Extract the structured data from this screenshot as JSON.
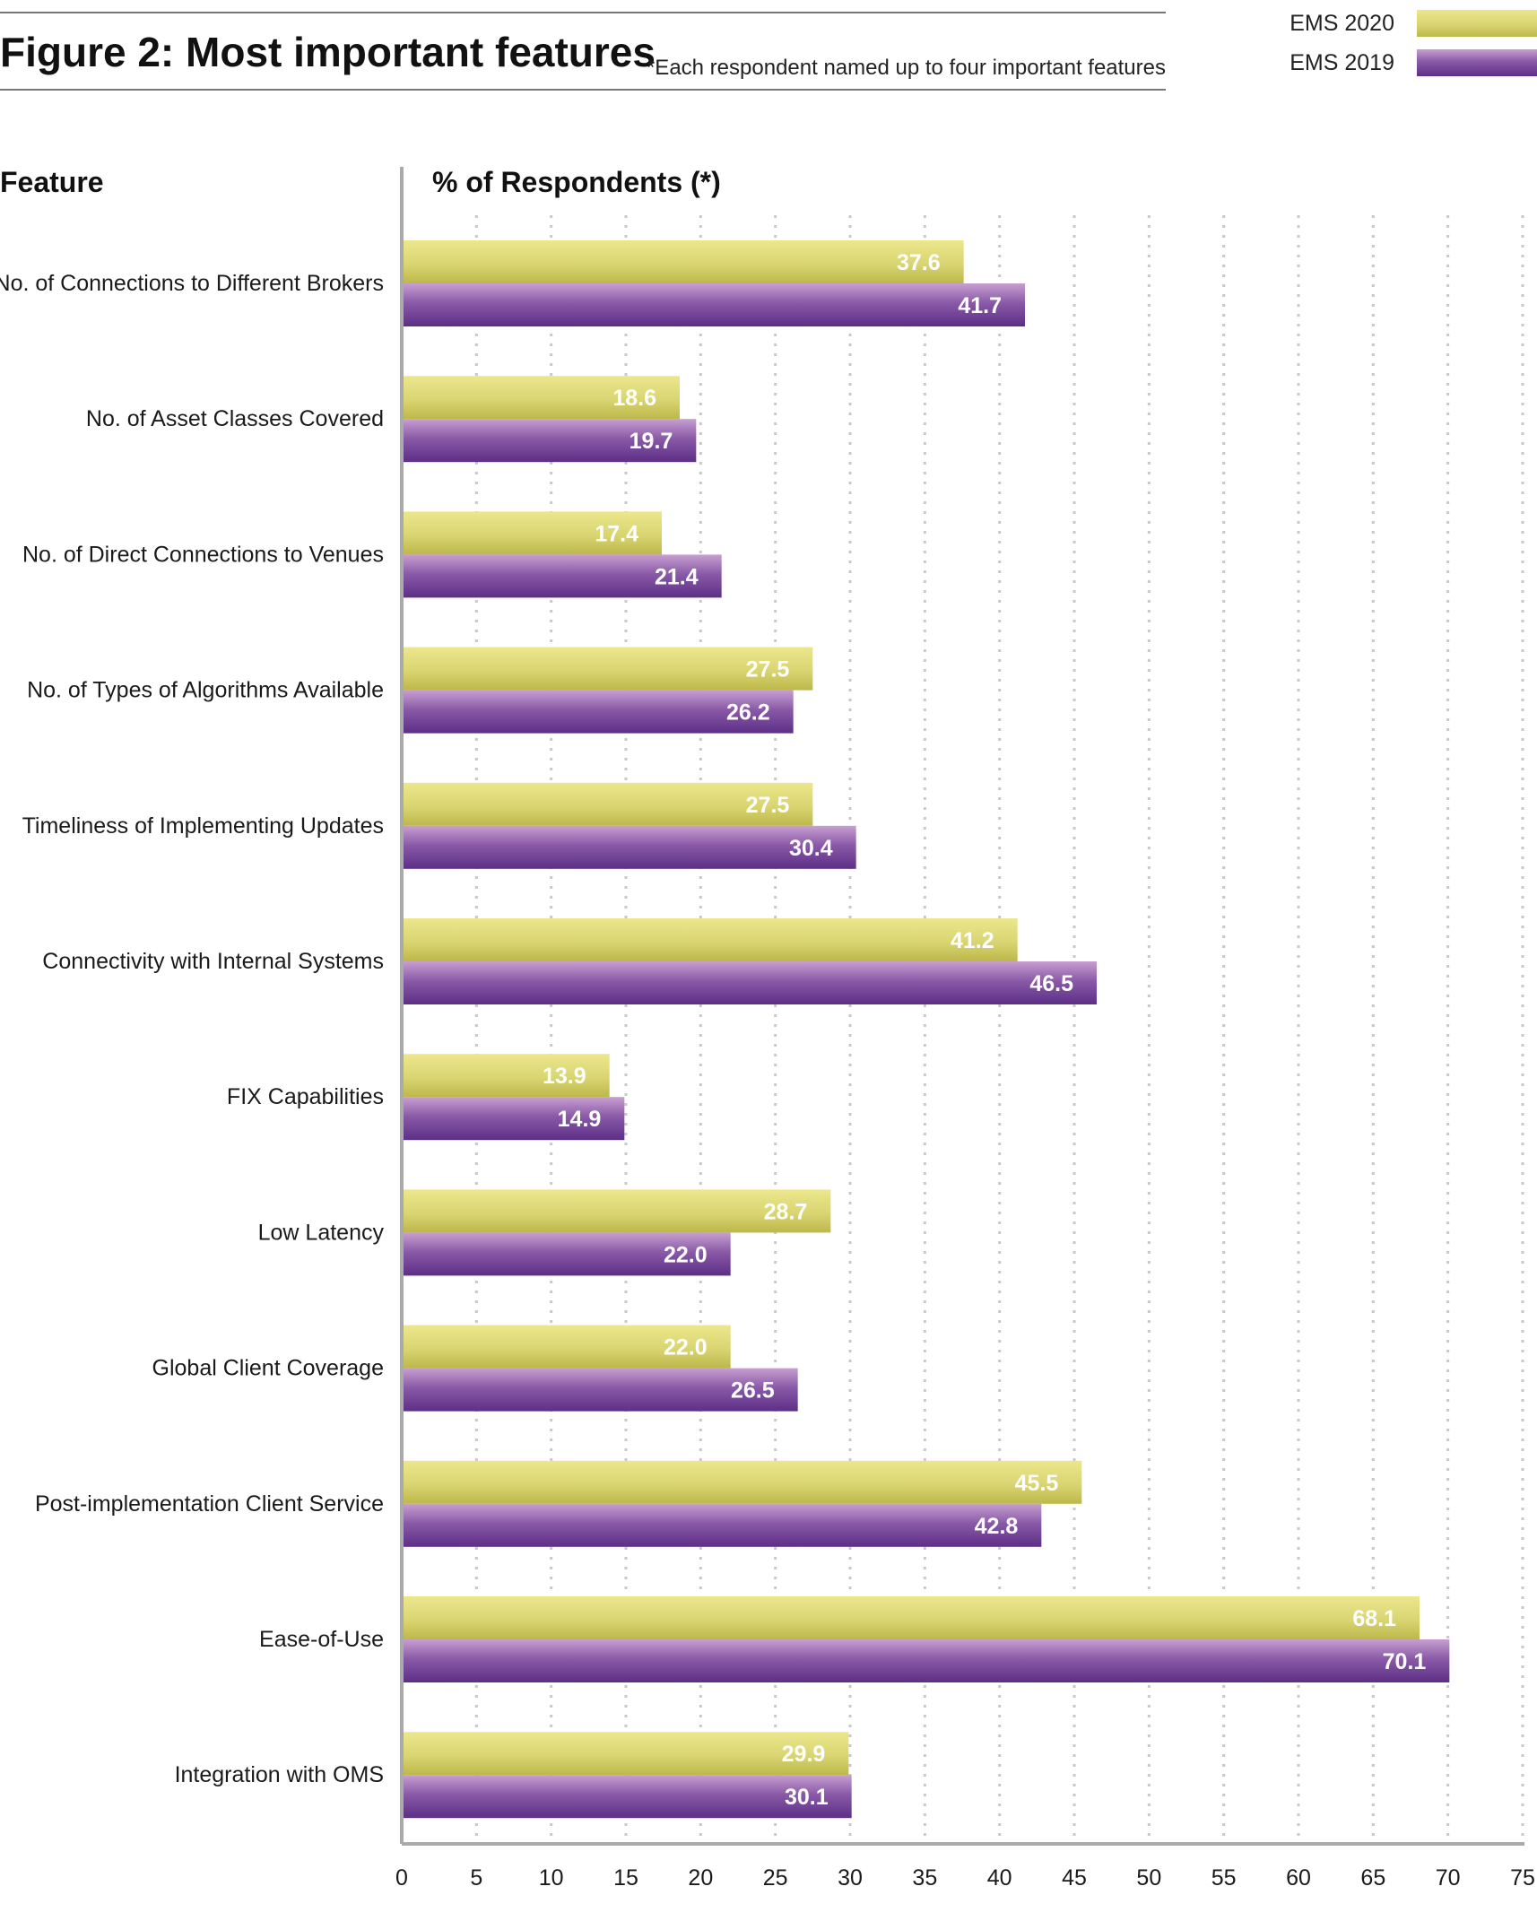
{
  "header": {
    "title": "Figure 2: Most important features",
    "note": "*Each respondent named up to four important features"
  },
  "columns": {
    "feature_header": "Feature",
    "value_header": "% of Respondents (*)"
  },
  "colors": {
    "ems2020_light": "#ece78c",
    "ems2020_dark": "#bdb84a",
    "ems2019_light": "#c79fd0",
    "ems2019_dark": "#5c2f86",
    "axis": "#aaaaaa",
    "grid": "#c8c8c8"
  },
  "chart_data": {
    "type": "bar",
    "orientation": "horizontal",
    "title": "Figure 2: Most important features",
    "xlabel": "% of Respondents (*)",
    "ylabel": "Feature",
    "xlim": [
      0,
      75
    ],
    "xticks": [
      0,
      5,
      10,
      15,
      20,
      25,
      30,
      35,
      40,
      45,
      50,
      55,
      60,
      65,
      70,
      75
    ],
    "grid": "vertical dotted",
    "legend": "top-right",
    "categories": [
      "No. of Connections to Different Brokers",
      "No. of Asset Classes Covered",
      "No. of Direct Connections to Venues",
      "No. of Types of Algorithms Available",
      "Timeliness of Implementing Updates",
      "Connectivity with Internal Systems",
      "FIX Capabilities",
      "Low Latency",
      "Global Client Coverage",
      "Post-implementation Client Service",
      "Ease-of-Use",
      "Integration with OMS"
    ],
    "series": [
      {
        "name": "EMS 2020",
        "values": [
          37.6,
          18.6,
          17.4,
          27.5,
          27.5,
          41.2,
          13.9,
          28.7,
          22.0,
          45.5,
          68.1,
          29.9
        ],
        "labels": [
          "37.6",
          "18.6",
          "17.4",
          "27.5",
          "27.5",
          "41.2",
          "13.9",
          "28.7",
          "22.0",
          "45.5",
          "68.1",
          "29.9"
        ]
      },
      {
        "name": "EMS 2019",
        "values": [
          41.7,
          19.7,
          21.4,
          26.2,
          30.4,
          46.5,
          14.9,
          22.0,
          26.5,
          42.8,
          70.1,
          30.1
        ],
        "labels": [
          "41.7",
          "19.7",
          "21.4",
          "26.2",
          "30.4",
          "46.5",
          "14.9",
          "22.0",
          "26.5",
          "42.8",
          "70.1",
          "30.1"
        ]
      }
    ]
  }
}
